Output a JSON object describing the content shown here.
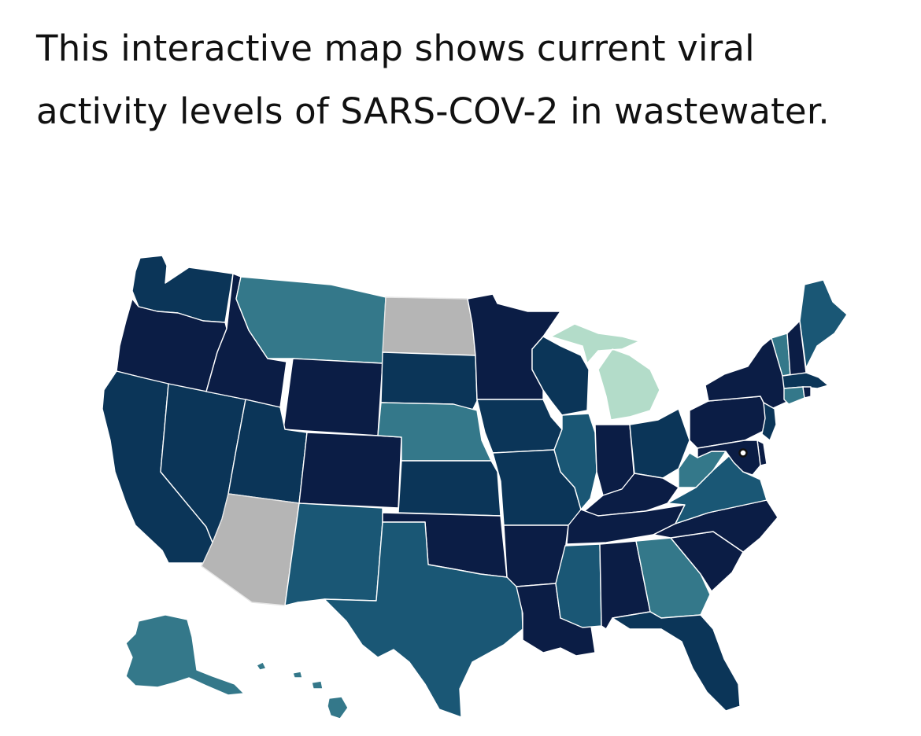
{
  "intro_text": "This interactive map shows current viral activity levels of SARS-COV-2 in wastewater.",
  "map": {
    "colors": {
      "very_high": "#0b1d45",
      "high": "#0b3558",
      "moderate": "#1a5775",
      "low": "#34788a",
      "very_low": "#b3dcc9",
      "no_data": "#b5b5b5"
    },
    "states": [
      {
        "id": "WA",
        "level": "high"
      },
      {
        "id": "OR",
        "level": "very_high"
      },
      {
        "id": "CA",
        "level": "high"
      },
      {
        "id": "NV",
        "level": "high"
      },
      {
        "id": "ID",
        "level": "very_high"
      },
      {
        "id": "MT",
        "level": "low"
      },
      {
        "id": "WY",
        "level": "very_high"
      },
      {
        "id": "UT",
        "level": "high"
      },
      {
        "id": "AZ",
        "level": "no_data"
      },
      {
        "id": "CO",
        "level": "very_high"
      },
      {
        "id": "NM",
        "level": "moderate"
      },
      {
        "id": "ND",
        "level": "no_data"
      },
      {
        "id": "SD",
        "level": "high"
      },
      {
        "id": "NE",
        "level": "low"
      },
      {
        "id": "KS",
        "level": "high"
      },
      {
        "id": "OK",
        "level": "very_high"
      },
      {
        "id": "TX",
        "level": "moderate"
      },
      {
        "id": "MN",
        "level": "very_high"
      },
      {
        "id": "IA",
        "level": "high"
      },
      {
        "id": "MO",
        "level": "high"
      },
      {
        "id": "AR",
        "level": "very_high"
      },
      {
        "id": "LA",
        "level": "very_high"
      },
      {
        "id": "WI",
        "level": "high"
      },
      {
        "id": "MI",
        "level": "very_low"
      },
      {
        "id": "IL",
        "level": "moderate"
      },
      {
        "id": "IN",
        "level": "very_high"
      },
      {
        "id": "OH",
        "level": "high"
      },
      {
        "id": "KY",
        "level": "very_high"
      },
      {
        "id": "TN",
        "level": "very_high"
      },
      {
        "id": "MS",
        "level": "moderate"
      },
      {
        "id": "AL",
        "level": "very_high"
      },
      {
        "id": "GA",
        "level": "low"
      },
      {
        "id": "FL",
        "level": "high"
      },
      {
        "id": "SC",
        "level": "very_high"
      },
      {
        "id": "NC",
        "level": "very_high"
      },
      {
        "id": "VA",
        "level": "moderate"
      },
      {
        "id": "WV",
        "level": "low"
      },
      {
        "id": "PA",
        "level": "very_high"
      },
      {
        "id": "NY",
        "level": "very_high"
      },
      {
        "id": "NJ",
        "level": "high"
      },
      {
        "id": "DE",
        "level": "very_high"
      },
      {
        "id": "MD",
        "level": "very_high"
      },
      {
        "id": "VT",
        "level": "low"
      },
      {
        "id": "NH",
        "level": "very_high"
      },
      {
        "id": "ME",
        "level": "moderate"
      },
      {
        "id": "MA",
        "level": "high"
      },
      {
        "id": "CT",
        "level": "low"
      },
      {
        "id": "RI",
        "level": "very_high"
      },
      {
        "id": "AK",
        "level": "low"
      },
      {
        "id": "HI",
        "level": "low"
      },
      {
        "id": "DC",
        "level": "very_high"
      }
    ]
  }
}
